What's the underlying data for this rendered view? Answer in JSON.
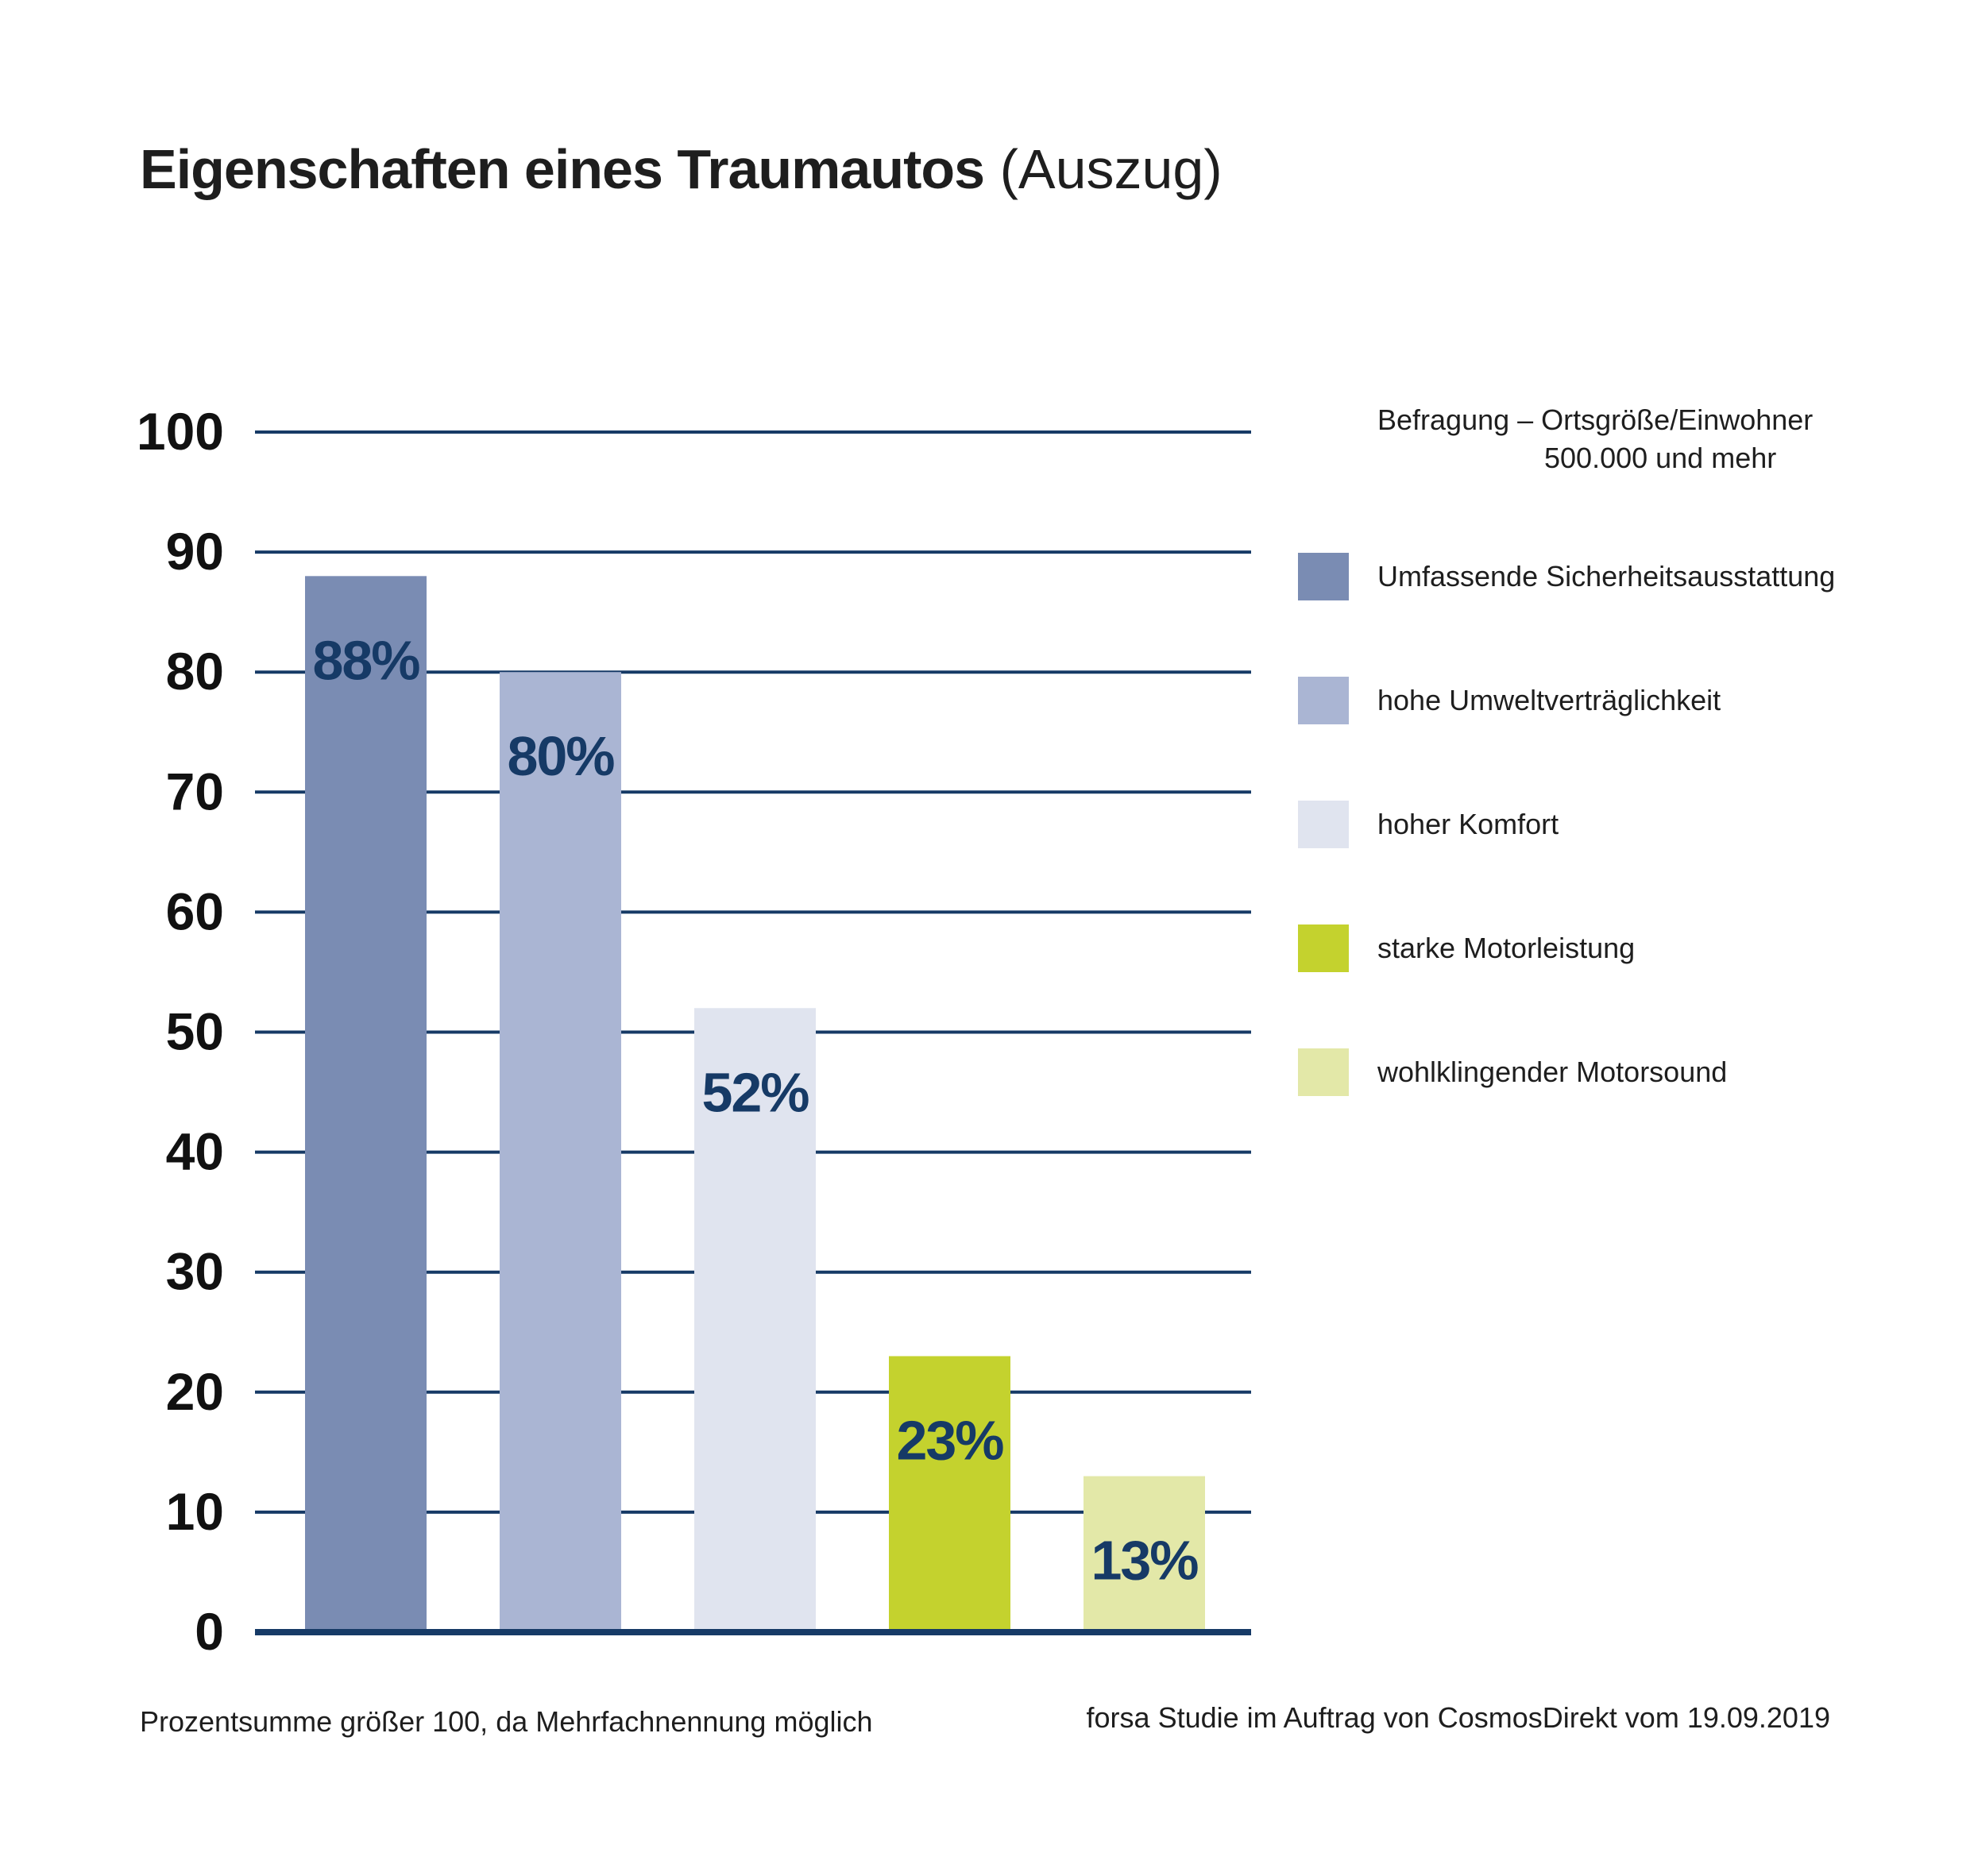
{
  "title": {
    "bold": "Eigenschaften eines Traumautos",
    "light": "(Auszug)"
  },
  "chart_data": {
    "type": "bar",
    "categories": [
      "Umfassende Sicherheitsausstattung",
      "hohe Umweltverträglichkeit",
      "hoher Komfort",
      "starke Motorleistung",
      "wohlklingender Motorsound"
    ],
    "values": [
      88,
      80,
      52,
      23,
      13
    ],
    "value_labels": [
      "88%",
      "80%",
      "52%",
      "23%",
      "13%"
    ],
    "colors": [
      "#7a8cb3",
      "#aab5d3",
      "#e0e4ef",
      "#c4d22e",
      "#e3e8a8"
    ],
    "y_ticks": [
      "100",
      "90",
      "80",
      "70",
      "60",
      "50",
      "40",
      "30",
      "20",
      "10",
      "0"
    ],
    "ylim": [
      0,
      100
    ],
    "grid": true,
    "gridline_color": "#163a66",
    "value_label_color": "#163a66",
    "legend_position": "right"
  },
  "legend": {
    "heading_line1": "Befragung – Ortsgröße/Einwohner",
    "heading_line2": "500.000 und mehr",
    "items": [
      {
        "label": "Umfassende Sicherheitsausstattung",
        "color": "#7a8cb3"
      },
      {
        "label": "hohe Umweltverträglichkeit",
        "color": "#aab5d3"
      },
      {
        "label": "hoher Komfort",
        "color": "#e0e4ef"
      },
      {
        "label": "starke Motorleistung",
        "color": "#c4d22e"
      },
      {
        "label": "wohlklingender Motorsound",
        "color": "#e3e8a8"
      }
    ]
  },
  "footnote": {
    "left": "Prozentsumme größer 100, da Mehrfachnennung möglich",
    "right": "forsa Studie im Auftrag von CosmosDirekt vom 19.09.2019"
  }
}
